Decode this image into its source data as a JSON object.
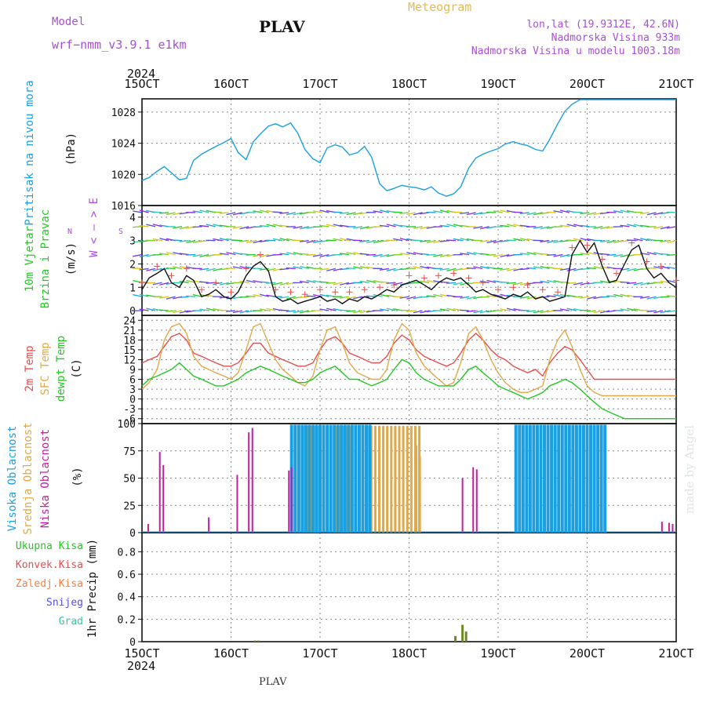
{
  "header": {
    "model_label": "Model",
    "model_name": "wrf−nmm_v3.9.1  e1km",
    "station": "PLAV",
    "chart_kind": "Meteogram",
    "location": "lon,lat (19.9312E, 42.6N)",
    "elevation": "Nadmorska Visina 933m",
    "model_elevation": "Nadmorska Visina u modelu 1003.18m",
    "footer_station": "PLAV",
    "credit": "made by Angel"
  },
  "colors": {
    "pressure": "#1aa0e0",
    "temp2m": "#e84c4c",
    "sfctemp": "#e0a848",
    "dewpt": "#22c822",
    "high_cloud": "#1aa0e0",
    "mid_cloud": "#e0a848",
    "low_cloud": "#c0209c",
    "total_precip": "#22c822",
    "conv_precip": "#e84c4c",
    "frz_precip": "#f08040",
    "snow": "#5050e0",
    "graupel": "#30c8a8",
    "wind_label": "#a64fd6"
  },
  "axis": {
    "year": "2024",
    "dates": [
      "15OCT",
      "16OCT",
      "17OCT",
      "18OCT",
      "19OCT",
      "20OCT",
      "21OCT"
    ]
  },
  "chart_data": [
    {
      "type": "line",
      "panel": "pressure",
      "ylabel": [
        "Pritisak na nivou mora",
        "(hPa)"
      ],
      "yticks": [
        1016,
        1020,
        1024,
        1028
      ],
      "ylim": [
        1016,
        1029.7
      ],
      "xlim": [
        0,
        6
      ],
      "x": [
        0,
        0.08,
        0.17,
        0.25,
        0.33,
        0.42,
        0.5,
        0.58,
        0.67,
        0.75,
        0.83,
        0.92,
        1,
        1.08,
        1.17,
        1.25,
        1.33,
        1.42,
        1.5,
        1.58,
        1.67,
        1.75,
        1.83,
        1.92,
        2,
        2.08,
        2.17,
        2.25,
        2.33,
        2.42,
        2.5,
        2.58,
        2.67,
        2.75,
        2.83,
        2.92,
        3,
        3.08,
        3.17,
        3.25,
        3.33,
        3.42,
        3.5,
        3.58,
        3.67,
        3.75,
        3.83,
        3.92,
        4,
        4.08,
        4.17,
        4.25,
        4.33,
        4.42,
        4.5,
        4.58,
        4.67,
        4.75,
        4.83,
        4.92,
        5,
        5.08,
        5.17,
        5.25,
        5.33,
        5.42,
        5.5,
        5.58,
        5.67,
        5.75,
        5.83,
        5.92,
        6
      ],
      "series": [
        {
          "key": "pressure",
          "values": [
            1019.2,
            1019.6,
            1020.4,
            1021,
            1020.2,
            1019.3,
            1019.5,
            1021.8,
            1022.6,
            1023.1,
            1023.6,
            1024.1,
            1024.6,
            1022.8,
            1021.9,
            1024.2,
            1025.2,
            1026.2,
            1026.5,
            1026.1,
            1026.6,
            1025.3,
            1023.2,
            1022,
            1021.5,
            1023.4,
            1023.8,
            1023.5,
            1022.5,
            1022.8,
            1023.6,
            1022.2,
            1018.8,
            1017.9,
            1018.2,
            1018.6,
            1018.4,
            1018.3,
            1018,
            1018.4,
            1017.6,
            1017.2,
            1017.5,
            1018.4,
            1020.8,
            1022.1,
            1022.6,
            1023,
            1023.3,
            1023.9,
            1024.2,
            1023.9,
            1023.7,
            1023.2,
            1023,
            1024.5,
            1026.5,
            1028.1,
            1029,
            1029.6,
            1029.6,
            1029.6,
            1029.6,
            1029.6,
            1029.6,
            1029.6,
            1029.6,
            1029.6,
            1029.6,
            1029.6,
            1029.6,
            1029.6,
            1029.6
          ]
        }
      ]
    },
    {
      "type": "line",
      "panel": "wind",
      "ylabel": [
        "10m Vjetar",
        "Brzina i Pravac",
        "(m/s)"
      ],
      "direction_key": [
        "N",
        "W < — > E",
        "S"
      ],
      "yticks": [
        0,
        1,
        2,
        3,
        4
      ],
      "ylim": [
        -0.2,
        4.5
      ],
      "xlim": [
        0,
        6
      ],
      "x": [
        0,
        0.08,
        0.17,
        0.25,
        0.33,
        0.42,
        0.5,
        0.58,
        0.67,
        0.75,
        0.83,
        0.92,
        1,
        1.08,
        1.17,
        1.25,
        1.33,
        1.42,
        1.5,
        1.58,
        1.67,
        1.75,
        1.83,
        1.92,
        2,
        2.08,
        2.17,
        2.25,
        2.33,
        2.42,
        2.5,
        2.58,
        2.67,
        2.75,
        2.83,
        2.92,
        3,
        3.08,
        3.17,
        3.25,
        3.33,
        3.42,
        3.5,
        3.58,
        3.67,
        3.75,
        3.83,
        3.92,
        4,
        4.08,
        4.17,
        4.25,
        4.33,
        4.42,
        4.5,
        4.58,
        4.67,
        4.75,
        4.83,
        4.92,
        5,
        5.08,
        5.17,
        5.25,
        5.33,
        5.42,
        5.5,
        5.58,
        5.67,
        5.75,
        5.83,
        5.92,
        6
      ],
      "series": [
        {
          "key": "wind_speed",
          "values": [
            0.9,
            1.4,
            1.6,
            1.8,
            1.2,
            1,
            1.5,
            1.3,
            0.6,
            0.7,
            0.9,
            0.6,
            0.5,
            0.8,
            1.5,
            1.9,
            2.1,
            1.7,
            0.6,
            0.4,
            0.5,
            0.3,
            0.4,
            0.5,
            0.6,
            0.4,
            0.5,
            0.3,
            0.5,
            0.4,
            0.6,
            0.5,
            0.7,
            0.9,
            0.8,
            1.1,
            1.2,
            1.3,
            1.1,
            0.9,
            1.2,
            1.4,
            1.3,
            1.4,
            1.1,
            0.8,
            0.9,
            0.7,
            0.6,
            0.5,
            0.7,
            0.6,
            0.8,
            0.5,
            0.6,
            0.4,
            0.5,
            0.6,
            2.4,
            3,
            2.5,
            2.9,
            1.9,
            1.2,
            1.3,
            2,
            2.6,
            2.8,
            1.8,
            1.4,
            1.6,
            1.2,
            1
          ]
        }
      ]
    },
    {
      "type": "line",
      "panel": "temperature",
      "ylabel": [
        "2m Temp",
        "SFC Temp",
        "dewpt Temp",
        "(C)"
      ],
      "yticks": [
        -6,
        -3,
        0,
        3,
        6,
        9,
        12,
        15,
        18,
        21,
        24
      ],
      "ylim": [
        -7.5,
        25.5
      ],
      "xlim": [
        0,
        6
      ],
      "x": [
        0,
        0.08,
        0.17,
        0.25,
        0.33,
        0.42,
        0.5,
        0.58,
        0.67,
        0.75,
        0.83,
        0.92,
        1,
        1.08,
        1.17,
        1.25,
        1.33,
        1.42,
        1.5,
        1.58,
        1.67,
        1.75,
        1.83,
        1.92,
        2,
        2.08,
        2.17,
        2.25,
        2.33,
        2.42,
        2.5,
        2.58,
        2.67,
        2.75,
        2.83,
        2.92,
        3,
        3.08,
        3.17,
        3.25,
        3.33,
        3.42,
        3.5,
        3.58,
        3.67,
        3.75,
        3.83,
        3.92,
        4,
        4.08,
        4.17,
        4.25,
        4.33,
        4.42,
        4.5,
        4.58,
        4.67,
        4.75,
        4.83,
        4.92,
        5,
        5.08,
        5.17,
        5.25,
        5.33,
        5.42,
        5.5,
        5.58,
        5.67,
        5.75,
        5.83,
        5.92,
        6
      ],
      "series": [
        {
          "key": "temp2m",
          "name": "2m Temp",
          "values": [
            11,
            12,
            13,
            16,
            19,
            20,
            18,
            14,
            13,
            12,
            11,
            10,
            10,
            11,
            14,
            17,
            17,
            14,
            13,
            12,
            11,
            10,
            10,
            11,
            15,
            18,
            19,
            17,
            14,
            13,
            12,
            11,
            11,
            13,
            17,
            19.5,
            18,
            15,
            13,
            12,
            11,
            10,
            11,
            14,
            18,
            20,
            18,
            15,
            13,
            12,
            10,
            9,
            8,
            9,
            7,
            11,
            14,
            16,
            15,
            12,
            9,
            6,
            6,
            6,
            6,
            6,
            6,
            6,
            6,
            6,
            6,
            6,
            6
          ]
        },
        {
          "key": "sfctemp",
          "name": "SFC Temp",
          "values": [
            3,
            5,
            9,
            18,
            22,
            23,
            20,
            13,
            10,
            9,
            8,
            7,
            6,
            8,
            15,
            22,
            23,
            17,
            12,
            9,
            7,
            5,
            4,
            7,
            15,
            21,
            22,
            17,
            11,
            8,
            7,
            6,
            6,
            9,
            18,
            23,
            21,
            14,
            10,
            8,
            6,
            4,
            5,
            11,
            20,
            22,
            18,
            12,
            8,
            5,
            3,
            2,
            2,
            3,
            4,
            12,
            18,
            21,
            16,
            9,
            4,
            2,
            1,
            1,
            1,
            1,
            1,
            1,
            1,
            1,
            1,
            1,
            1
          ]
        },
        {
          "key": "dewpt",
          "name": "dewpt Temp",
          "values": [
            4,
            6,
            7,
            8,
            9,
            11,
            9,
            7,
            6,
            5,
            4,
            4,
            5,
            6,
            8,
            9,
            10,
            9,
            8,
            7,
            6,
            5,
            5,
            6,
            8,
            9,
            10,
            8,
            6,
            6,
            5,
            4,
            5,
            6,
            9,
            12,
            11,
            8,
            6,
            5,
            4,
            4,
            4,
            6,
            9,
            10,
            8,
            6,
            4,
            3,
            2,
            1,
            0,
            1,
            2,
            4,
            5,
            6,
            5,
            3,
            1,
            -1,
            -3,
            -4,
            -5,
            -6,
            -6,
            -6,
            -6,
            -6,
            -6,
            -6,
            -6
          ]
        }
      ]
    },
    {
      "type": "bar",
      "panel": "cloud",
      "ylabel": [
        "Visoka Oblacnost",
        "Srednja Oblacnost",
        "Niska Oblacnost",
        "(%)"
      ],
      "yticks": [
        0,
        25,
        50,
        75,
        100
      ],
      "ylim": [
        0,
        100
      ],
      "xlim": [
        0,
        6
      ],
      "series": [
        {
          "key": "low_cloud",
          "name": "Niska Oblacnost",
          "bars": [
            [
              0.07,
              8
            ],
            [
              0.2,
              74
            ],
            [
              0.24,
              62
            ],
            [
              0.75,
              14
            ],
            [
              1.07,
              53
            ],
            [
              1.2,
              92
            ],
            [
              1.24,
              96
            ],
            [
              1.65,
              57
            ],
            [
              1.68,
              60
            ],
            [
              3.6,
              50
            ],
            [
              3.72,
              60
            ],
            [
              3.76,
              58
            ],
            [
              5.84,
              10
            ],
            [
              5.92,
              9
            ],
            [
              5.96,
              8
            ]
          ]
        },
        {
          "key": "mid_cloud",
          "name": "Srednja Oblacnost",
          "range": [
            1.72,
            3.12
          ],
          "step": 0.045,
          "value": 98,
          "extra": [
            [
              3.08,
              80
            ],
            [
              3.12,
              70
            ]
          ]
        },
        {
          "key": "high_cloud",
          "name": "Visoka Oblacnost",
          "range": [
            1.68,
            2.58
          ],
          "step": 0.04,
          "value": 99,
          "extra_ranges": [
            [
              4.2,
              5.22
            ]
          ]
        }
      ]
    },
    {
      "type": "bar",
      "panel": "precip",
      "ylabel": [
        "1hr Precip (mm)"
      ],
      "legend": [
        "Ukupna Kisa",
        "Konvek.Kisa",
        "Zaledj.Kisa",
        "Snijeg",
        "Grad"
      ],
      "yticks": [
        0,
        0.2,
        0.4,
        0.6,
        0.8
      ],
      "ylim": [
        0,
        0.97
      ],
      "xlim": [
        0,
        6
      ],
      "series": [
        {
          "key": "total_precip",
          "name": "Ukupna Kisa",
          "bars": [
            [
              1.27,
              0.01
            ],
            [
              1.31,
              0.01
            ],
            [
              3.52,
              0.05
            ],
            [
              3.6,
              0.15
            ],
            [
              3.64,
              0.09
            ]
          ]
        }
      ]
    }
  ]
}
